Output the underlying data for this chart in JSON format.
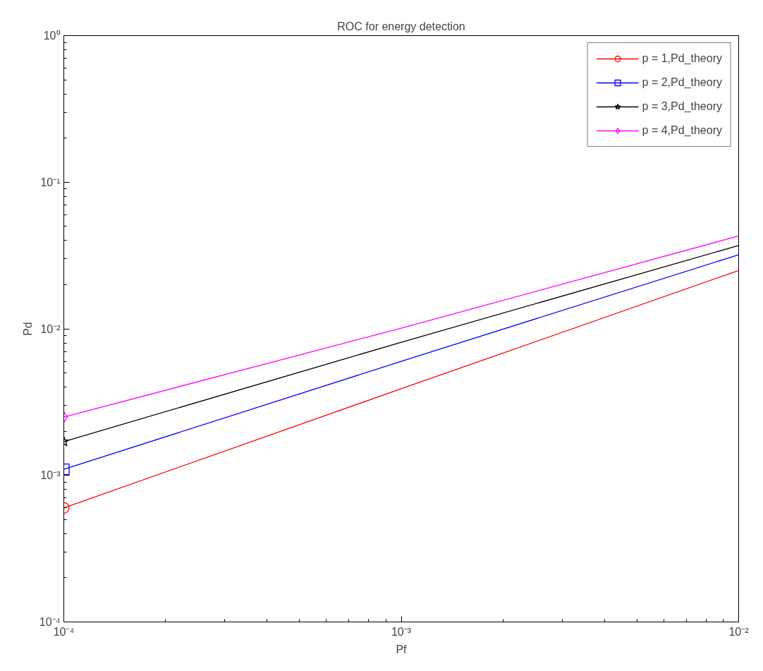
{
  "chart_data": {
    "type": "line",
    "title": "ROC for energy detection",
    "xlabel": "Pf",
    "ylabel": "Pd",
    "x": [
      0.0001,
      0.001,
      0.01
    ],
    "series": [
      {
        "name": "p = 1,Pd_theory",
        "color": "#ff0000",
        "marker": "none",
        "values": [
          0.0006,
          0.0039,
          0.025
        ]
      },
      {
        "name": "p = 2,Pd_theory",
        "color": "#0000ff",
        "marker": "none",
        "values": [
          0.0011,
          0.006,
          0.032
        ]
      },
      {
        "name": "p = 3,Pd_theory",
        "color": "#000000",
        "marker": "none",
        "values": [
          0.0017,
          0.0081,
          0.037
        ]
      },
      {
        "name": "p = 4,Pd_theory",
        "color": "#ff00ff",
        "marker": "none",
        "values": [
          0.0025,
          0.0101,
          0.043
        ]
      },
      {
        "type": "scatter",
        "color": "#ff0000",
        "marker": "circle",
        "values": [
          0.0006,
          null,
          null
        ]
      },
      {
        "type": "scatter",
        "color": "#0000ff",
        "marker": "square",
        "values": [
          0.0011,
          null,
          null
        ]
      },
      {
        "type": "scatter",
        "color": "#000000",
        "marker": "star",
        "values": [
          0.0017,
          null,
          null
        ]
      },
      {
        "type": "scatter",
        "color": "#ff00ff",
        "marker": "diamond",
        "values": [
          0.0025,
          null,
          null
        ]
      }
    ],
    "log": "xy",
    "grid": false,
    "legend": "top right",
    "line_style": "solid",
    "xlim": [
      0.0001,
      0.01
    ],
    "ylim": [
      0.0001,
      1
    ],
    "xticks": [
      {
        "value": 0.0001,
        "label": "10⁻⁴"
      },
      {
        "value": 0.001,
        "label": "10⁻³"
      },
      {
        "value": 0.01,
        "label": "10⁻²"
      }
    ],
    "yticks": [
      {
        "value": 0.0001,
        "label": "10⁻⁴"
      },
      {
        "value": 0.001,
        "label": "10⁻³"
      },
      {
        "value": 0.01,
        "label": "10⁻²"
      },
      {
        "value": 0.1,
        "label": "10⁻¹"
      },
      {
        "value": 1,
        "label": "10⁰"
      }
    ]
  }
}
